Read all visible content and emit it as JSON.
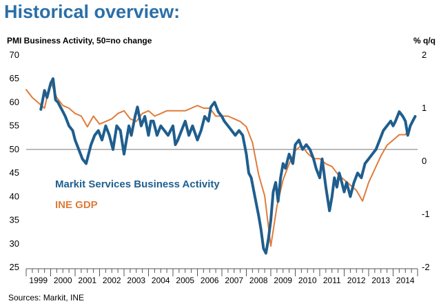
{
  "header": {
    "title": "Historical overview:",
    "left_axis_label": "PMI Business Activity, 50=no change",
    "right_axis_label": "% q/q",
    "source": "Sources: Markit, INE"
  },
  "chart_data": {
    "type": "line",
    "title": "Historical overview:",
    "xlabel": "",
    "ylabel": "PMI Business Activity, 50=no change",
    "y2label": "% q/q",
    "ylim": [
      25,
      70
    ],
    "y2lim": [
      -2,
      2
    ],
    "yticks": [
      25,
      30,
      35,
      40,
      45,
      50,
      55,
      60,
      65,
      70
    ],
    "y2ticks": [
      -2,
      -1,
      0,
      1,
      2
    ],
    "reference_line": 50,
    "xlim": [
      1999.0,
      2015.0
    ],
    "x_tick_labels": [
      "1999",
      "2000",
      "2001",
      "2002",
      "2003",
      "2004",
      "2005",
      "2006",
      "2007",
      "2008",
      "2009",
      "2010",
      "2011",
      "2012",
      "2013",
      "2014"
    ],
    "series": [
      {
        "name": "Markit Services Business Activity",
        "axis": "left",
        "color": "#1f5e8e",
        "x": [
          1999.6,
          1999.75,
          1999.85,
          2000.0,
          2000.1,
          2000.2,
          2000.3,
          2000.4,
          2000.5,
          2000.6,
          2000.75,
          2000.9,
          2001.0,
          2001.15,
          2001.3,
          2001.45,
          2001.55,
          2001.65,
          2001.8,
          2001.95,
          2002.1,
          2002.25,
          2002.4,
          2002.55,
          2002.7,
          2002.85,
          2003.0,
          2003.1,
          2003.2,
          2003.3,
          2003.45,
          2003.55,
          2003.7,
          2003.85,
          2004.0,
          2004.1,
          2004.2,
          2004.35,
          2004.5,
          2004.65,
          2004.8,
          2005.0,
          2005.1,
          2005.2,
          2005.35,
          2005.5,
          2005.65,
          2005.8,
          2006.0,
          2006.15,
          2006.3,
          2006.45,
          2006.55,
          2006.7,
          2006.85,
          2007.0,
          2007.1,
          2007.25,
          2007.4,
          2007.55,
          2007.7,
          2007.85,
          2008.0,
          2008.1,
          2008.2,
          2008.35,
          2008.5,
          2008.6,
          2008.7,
          2008.8,
          2008.9,
          2009.0,
          2009.1,
          2009.2,
          2009.3,
          2009.4,
          2009.5,
          2009.6,
          2009.75,
          2009.9,
          2010.0,
          2010.15,
          2010.3,
          2010.45,
          2010.6,
          2010.75,
          2010.85,
          2011.0,
          2011.1,
          2011.25,
          2011.4,
          2011.5,
          2011.6,
          2011.7,
          2011.8,
          2011.9,
          2012.0,
          2012.1,
          2012.25,
          2012.4,
          2012.55,
          2012.7,
          2012.85,
          2013.0,
          2013.15,
          2013.3,
          2013.45,
          2013.6,
          2013.75,
          2013.9,
          2014.0,
          2014.1,
          2014.25,
          2014.4,
          2014.5,
          2014.6,
          2014.7,
          2014.8,
          2014.9
        ],
        "values": [
          58.5,
          62.5,
          61,
          64,
          65,
          60.5,
          60,
          59,
          58,
          57,
          55,
          54,
          52,
          50,
          48,
          47,
          49,
          51,
          53,
          54,
          52,
          55,
          53,
          50,
          55,
          54,
          49,
          52,
          55,
          53,
          57,
          59,
          55,
          57,
          53,
          56,
          56,
          53,
          55,
          54,
          53,
          55,
          51,
          52,
          54,
          56,
          53,
          55,
          52,
          54,
          57,
          56,
          59,
          60,
          58,
          57,
          56,
          55,
          54,
          53,
          54,
          53,
          49,
          45,
          44,
          40,
          36,
          33,
          29,
          28,
          31,
          35,
          41,
          43,
          39,
          44,
          47,
          46,
          49,
          47,
          51,
          52,
          50,
          51,
          50,
          48,
          46,
          44,
          48,
          42,
          37,
          40,
          44,
          42,
          45,
          43,
          41,
          43,
          40,
          43,
          45,
          44,
          47,
          48,
          49,
          50,
          52,
          54,
          55,
          56,
          55,
          56,
          58,
          57,
          56,
          53,
          55,
          56,
          57
        ],
        "marks": 0
      },
      {
        "name": "INE GDP",
        "axis": "right",
        "color": "#e07b39",
        "x": [
          1999.0,
          1999.25,
          1999.5,
          1999.75,
          2000.0,
          2000.25,
          2000.5,
          2000.75,
          2001.0,
          2001.25,
          2001.5,
          2001.75,
          2002.0,
          2002.25,
          2002.5,
          2002.75,
          2003.0,
          2003.25,
          2003.5,
          2003.75,
          2004.0,
          2004.25,
          2004.5,
          2004.75,
          2005.0,
          2005.25,
          2005.5,
          2005.75,
          2006.0,
          2006.25,
          2006.5,
          2006.75,
          2007.0,
          2007.25,
          2007.5,
          2007.75,
          2008.0,
          2008.25,
          2008.5,
          2008.75,
          2009.0,
          2009.25,
          2009.5,
          2009.75,
          2010.0,
          2010.25,
          2010.5,
          2010.75,
          2011.0,
          2011.25,
          2011.5,
          2011.75,
          2012.0,
          2012.25,
          2012.5,
          2012.75,
          2013.0,
          2013.25,
          2013.5,
          2013.75,
          2014.0,
          2014.25,
          2014.5,
          2014.75
        ],
        "values": [
          1.35,
          1.2,
          1.1,
          1.0,
          1.5,
          1.2,
          1.05,
          1.0,
          0.9,
          0.85,
          0.65,
          0.85,
          0.7,
          0.75,
          0.8,
          0.9,
          0.95,
          0.8,
          0.75,
          0.9,
          0.95,
          0.85,
          0.9,
          0.95,
          0.95,
          0.95,
          0.95,
          1.0,
          1.05,
          1.0,
          1.0,
          0.85,
          0.85,
          0.85,
          0.8,
          0.75,
          0.65,
          0.35,
          -0.25,
          -0.65,
          -1.6,
          -0.85,
          -0.35,
          -0.05,
          0.2,
          0.3,
          0.15,
          0.05,
          0.05,
          -0.05,
          -0.1,
          -0.25,
          -0.35,
          -0.45,
          -0.55,
          -0.75,
          -0.4,
          -0.15,
          0.1,
          0.3,
          0.4,
          0.5,
          0.5,
          0.7
        ],
        "marks": 0
      }
    ],
    "legend": [
      {
        "label": "Markit Services Business Activity",
        "color": "#1f5e8e"
      },
      {
        "label": "INE GDP",
        "color": "#e07b39"
      }
    ]
  }
}
